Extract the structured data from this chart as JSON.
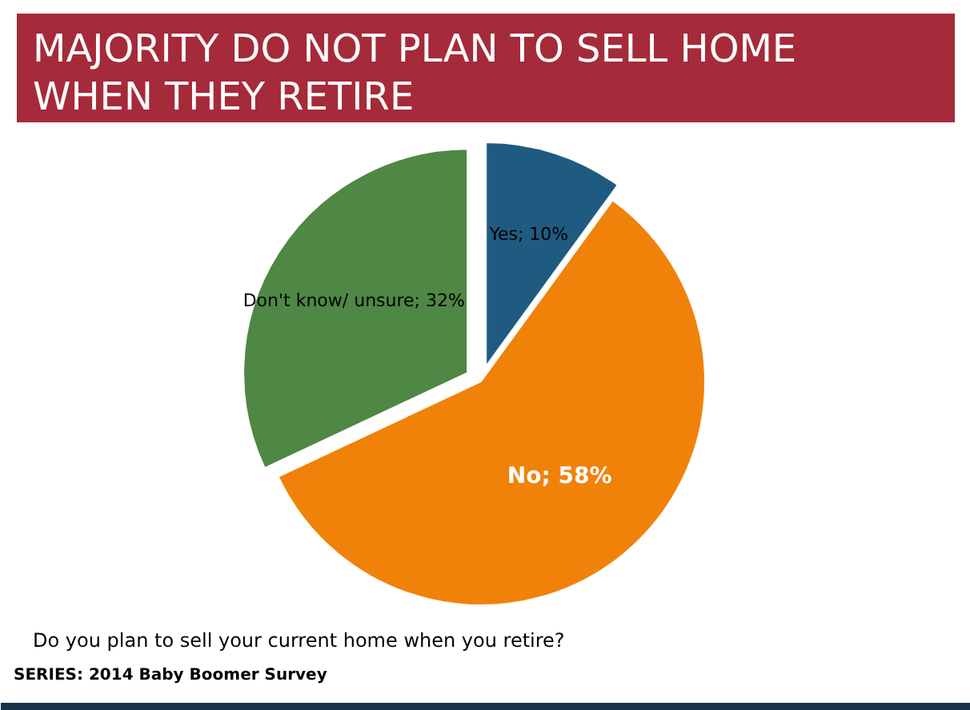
{
  "chart_data": {
    "type": "pie",
    "title": "MAJORITY DO NOT PLAN TO SELL HOME\nWHEN THEY RETIRE",
    "categories": [
      "Yes",
      "No",
      "Don't know/ unsure"
    ],
    "values": [
      10,
      58,
      32
    ],
    "colors": [
      "#1f5a80",
      "#f0820a",
      "#4f8744"
    ],
    "value_labels": [
      "10%",
      "58%",
      "32%"
    ],
    "legend": false,
    "annotations": [
      "Do you plan to sell your current home when you retire?",
      "SERIES: 2014 Baby Boomer Survey"
    ]
  }
}
